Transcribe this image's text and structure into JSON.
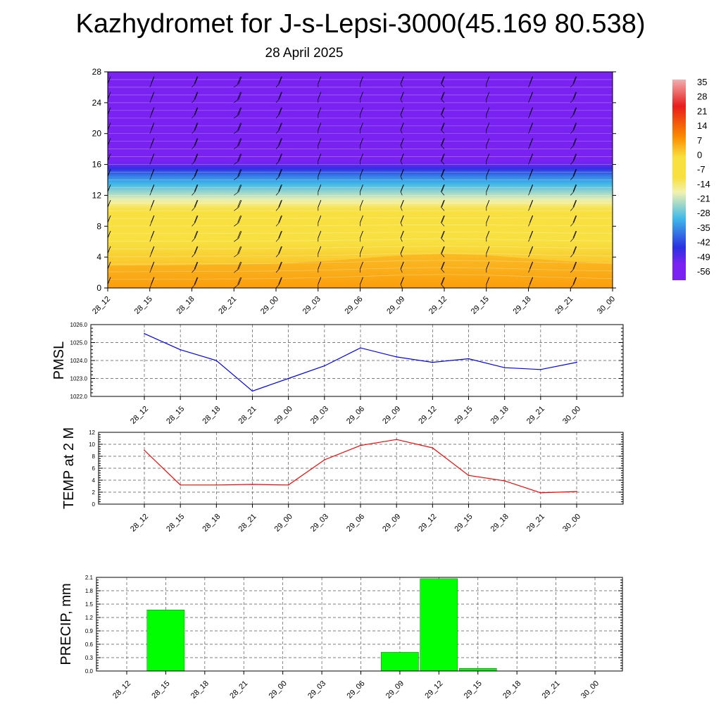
{
  "header": {
    "title": "Kazhydromet for J-s-Lepsi-3000(45.169 80.538)",
    "date": "28 April 2025"
  },
  "chart_data": [
    {
      "type": "heatmap",
      "name": "vertical-cross-section",
      "x_tick_labels": [
        "28_12",
        "28_15",
        "28_18",
        "28_21",
        "29_00",
        "29_03",
        "29_06",
        "29_09",
        "29_12",
        "29_15",
        "29_18",
        "29_21",
        "30_00"
      ],
      "y_tick_labels": [
        "0",
        "4",
        "8",
        "12",
        "16",
        "20",
        "24",
        "28"
      ],
      "ylim": [
        0,
        28
      ],
      "levels": [
        0,
        1,
        2,
        3,
        4,
        5,
        6,
        7,
        8,
        9,
        10,
        11,
        12,
        13,
        14,
        15,
        16,
        17,
        18,
        19,
        20,
        21,
        22,
        23,
        24,
        25,
        26,
        27,
        28
      ],
      "temperature_profile": [
        [
          0,
          7
        ],
        [
          2,
          4
        ],
        [
          4,
          2
        ],
        [
          6,
          0
        ],
        [
          8,
          -2
        ],
        [
          9,
          -4
        ],
        [
          10,
          -8
        ],
        [
          10.5,
          -12
        ],
        [
          11.5,
          -18
        ],
        [
          12.5,
          -24
        ],
        [
          13.5,
          -30
        ],
        [
          14.5,
          -36
        ],
        [
          15.2,
          -42
        ],
        [
          15.8,
          -48
        ],
        [
          16.4,
          -54
        ],
        [
          17,
          -56
        ],
        [
          28,
          -56
        ]
      ],
      "time_offsets": [
        0.5,
        0.6,
        0.7,
        0.8,
        1.0,
        1.5,
        2.2,
        3.0,
        3.3,
        3.0,
        2.2,
        1.5,
        1.0
      ],
      "barb_direction_deg": [
        270,
        275,
        280,
        285,
        280,
        270,
        270,
        265,
        260,
        270,
        275,
        280,
        270
      ],
      "colorbar": {
        "labels": [
          "35",
          "28",
          "21",
          "14",
          "7",
          "0",
          "-7",
          "-14",
          "-21",
          "-28",
          "-35",
          "-42",
          "-49",
          "-56"
        ],
        "range": [
          -60,
          38
        ]
      },
      "colors": {
        "cold": "#7a22f2",
        "blue": "#2b30e0",
        "cyan": "#3fb8e8",
        "pale": "#f2f2b0",
        "yellow": "#f8e040",
        "orange": "#fb8c00",
        "red": "#e81c1c",
        "pink": "#f0b0b0"
      }
    },
    {
      "type": "line",
      "name": "pmsl",
      "ylabel": "PMSL",
      "categories": [
        "28_12",
        "28_15",
        "28_18",
        "28_21",
        "29_00",
        "29_03",
        "29_06",
        "29_09",
        "29_12",
        "29_15",
        "29_18",
        "29_21",
        "30_00"
      ],
      "values": [
        1025.5,
        1024.6,
        1024.0,
        1022.3,
        1023.0,
        1023.7,
        1024.7,
        1024.2,
        1023.9,
        1024.1,
        1023.6,
        1023.5,
        1023.9
      ],
      "y_tick_labels": [
        "1022.0",
        "1023.0",
        "1024.0",
        "1025.0",
        "1026.0"
      ],
      "ylim": [
        1022,
        1026
      ],
      "color": "#0000ff"
    },
    {
      "type": "line",
      "name": "temp-2m",
      "ylabel": "TEMP at 2 M",
      "categories": [
        "28_12",
        "28_15",
        "28_18",
        "28_21",
        "29_00",
        "29_03",
        "29_06",
        "29_09",
        "29_12",
        "29_15",
        "29_18",
        "29_21",
        "30_00"
      ],
      "values": [
        9.0,
        3.2,
        3.2,
        3.3,
        3.2,
        7.4,
        9.8,
        10.8,
        9.4,
        4.8,
        3.9,
        1.9,
        2.1
      ],
      "y_tick_labels": [
        "0",
        "2",
        "4",
        "6",
        "8",
        "10",
        "12"
      ],
      "ylim": [
        0,
        12
      ],
      "color": "#ff0000"
    },
    {
      "type": "bar",
      "name": "precip",
      "ylabel": "PRECIP, mm",
      "categories": [
        "28_12",
        "28_15",
        "28_18",
        "28_21",
        "29_00",
        "29_03",
        "29_06",
        "29_09",
        "29_12",
        "29_15",
        "29_18",
        "29_21",
        "30_00"
      ],
      "values": [
        0,
        1.37,
        0,
        0,
        0,
        0,
        0,
        0.42,
        2.07,
        0.06,
        0,
        0,
        0
      ],
      "y_tick_labels": [
        "0.0",
        "0.3",
        "0.6",
        "0.9",
        "1.2",
        "1.5",
        "1.8",
        "2.1"
      ],
      "ylim": [
        0,
        2.1
      ],
      "color": "#00ff00"
    }
  ]
}
